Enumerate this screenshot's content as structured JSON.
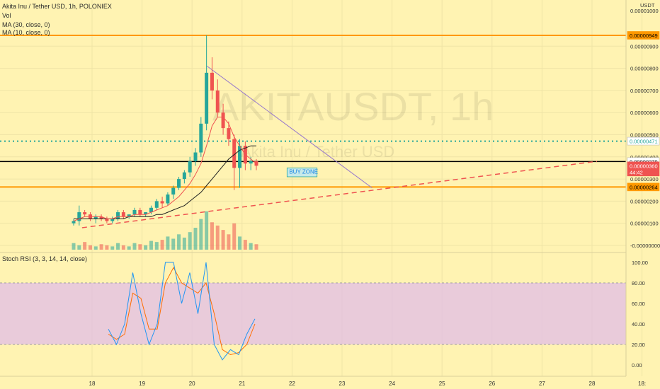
{
  "header": {
    "symbol_line": "Akita Inu / Tether USD, 1h, POLONIEX",
    "vol_label": "Vol",
    "ma30_label": "MA (30, close, 0)",
    "ma10_label": "MA (10, close, 0)"
  },
  "watermark": {
    "big": "AKITAUSDT, 1h",
    "small": "Akita Inu / Tether USD"
  },
  "annotation": {
    "buy_zone": "BUY ZONE"
  },
  "price_axis": {
    "currency": "USDT",
    "top_label": "0.00001000",
    "ticks": [
      "0.00000900",
      "0.00000800",
      "0.00000700",
      "0.00000600",
      "0.00000500",
      "0.00000400",
      "0.00000300",
      "0.00000200",
      "0.00000100",
      "-0.00000000"
    ],
    "tick_values": [
      9e-06,
      8e-06,
      7e-06,
      6e-06,
      5e-06,
      4e-06,
      3e-06,
      2e-06,
      1e-06,
      0
    ],
    "badges": [
      {
        "label": "0.00000949",
        "value": 9.49e-06,
        "color": "#ff9800",
        "text_color": "#000000"
      },
      {
        "label": "0.00000471",
        "value": 4.71e-06,
        "color": "#ffffff",
        "text_color": "#26a69a"
      },
      {
        "label": "0.00000379",
        "value": 3.79e-06,
        "color": "#ffffff",
        "text_color": "#000000"
      },
      {
        "label": "0.00000360",
        "sub": "44:42",
        "value": 3.6e-06,
        "color": "#ef5350",
        "text_color": "#ffffff"
      },
      {
        "label": "0.00000264",
        "value": 2.64e-06,
        "color": "#ff9800",
        "text_color": "#000000"
      }
    ]
  },
  "rsi": {
    "label": "Stoch RSI (3, 3, 14, 14, close)",
    "ticks": [
      "100.00",
      "80.00",
      "60.00",
      "40.00",
      "20.00",
      "0.00"
    ],
    "tick_values": [
      100,
      80,
      60,
      40,
      20,
      0
    ],
    "band_color": "#e1bee7"
  },
  "x_axis": {
    "labels": [
      "18",
      "19",
      "20",
      "21",
      "22",
      "23",
      "24",
      "25",
      "26",
      "27",
      "28",
      "18:"
    ]
  },
  "colors": {
    "up": "#26a69a",
    "down": "#ef5350",
    "ma30": "#212121",
    "ma10": "#ef5350",
    "resistance": "#ff9800",
    "dotted": "#26a69a",
    "trendline": "#ef5350",
    "k_line": "#2196f3",
    "d_line": "#ff6d00"
  },
  "chart_data": {
    "type": "candlestick",
    "symbol": "AKITAUSDT",
    "interval": "1h",
    "exchange": "POLONIEX",
    "ylim": [
      0,
      1e-05
    ],
    "candles_ohlc_sampled": [
      [
        1e-06,
        1.2e-06,
        9e-07,
        1.1e-06
      ],
      [
        1.1e-06,
        1.8e-06,
        9e-07,
        1.5e-06
      ],
      [
        1.5e-06,
        1.6e-06,
        1.3e-06,
        1.4e-06
      ],
      [
        1.4e-06,
        1.5e-06,
        1.1e-06,
        1.2e-06
      ],
      [
        1.2e-06,
        1.4e-06,
        1e-06,
        1.3e-06
      ],
      [
        1.3e-06,
        1.4e-06,
        1.1e-06,
        1.2e-06
      ],
      [
        1.2e-06,
        1.3e-06,
        1e-06,
        1.1e-06
      ],
      [
        1.1e-06,
        1.3e-06,
        1e-06,
        1.2e-06
      ],
      [
        1.2e-06,
        1.6e-06,
        1.1e-06,
        1.5e-06
      ],
      [
        1.5e-06,
        1.6e-06,
        1.2e-06,
        1.3e-06
      ],
      [
        1.3e-06,
        1.4e-06,
        1.2e-06,
        1.4e-06
      ],
      [
        1.4e-06,
        1.7e-06,
        1.3e-06,
        1.6e-06
      ],
      [
        1.6e-06,
        1.7e-06,
        1.3e-06,
        1.4e-06
      ],
      [
        1.4e-06,
        1.5e-06,
        1.3e-06,
        1.5e-06
      ],
      [
        1.5e-06,
        1.8e-06,
        1.4e-06,
        1.7e-06
      ],
      [
        1.7e-06,
        2.1e-06,
        1.6e-06,
        2e-06
      ],
      [
        2e-06,
        2.2e-06,
        1.7e-06,
        1.9e-06
      ],
      [
        1.9e-06,
        2.4e-06,
        1.8e-06,
        2.3e-06
      ],
      [
        2.3e-06,
        2.7e-06,
        2.1e-06,
        2.6e-06
      ],
      [
        2.6e-06,
        3.1e-06,
        2.5e-06,
        3e-06
      ],
      [
        3e-06,
        3.4e-06,
        2.8e-06,
        3.3e-06
      ],
      [
        3.3e-06,
        4e-06,
        3.1e-06,
        3.8e-06
      ],
      [
        3.8e-06,
        4.4e-06,
        3.6e-06,
        4.2e-06
      ],
      [
        4.2e-06,
        5.8e-06,
        4e-06,
        5.5e-06
      ],
      [
        5.5e-06,
        9.49e-06,
        5.2e-06,
        7.8e-06
      ],
      [
        7.8e-06,
        8.5e-06,
        6.6e-06,
        7e-06
      ],
      [
        7e-06,
        7.5e-06,
        5.8e-06,
        6e-06
      ],
      [
        6e-06,
        6.4e-06,
        5e-06,
        5.3e-06
      ],
      [
        5.3e-06,
        5.6e-06,
        4.5e-06,
        4.8e-06
      ],
      [
        4.8e-06,
        5e-06,
        2.5e-06,
        3.5e-06
      ],
      [
        3.5e-06,
        4.8e-06,
        2.6e-06,
        4.5e-06
      ],
      [
        4.5e-06,
        4.7e-06,
        3.4e-06,
        3.7e-06
      ],
      [
        3.7e-06,
        4e-06,
        3.4e-06,
        3.8e-06
      ],
      [
        3.8e-06,
        3.9e-06,
        3.4e-06,
        3.6e-06
      ]
    ],
    "volume_sampled": [
      6,
      4,
      7,
      4,
      3,
      5,
      4,
      3,
      6,
      4,
      3,
      6,
      5,
      4,
      8,
      7,
      9,
      12,
      10,
      14,
      11,
      16,
      20,
      28,
      35,
      25,
      22,
      18,
      14,
      24,
      12,
      9,
      6,
      5
    ],
    "ma10_sampled": [
      1.1e-06,
      1.2e-06,
      1.3e-06,
      1.3e-06,
      1.3e-06,
      1.3e-06,
      1.2e-06,
      1.2e-06,
      1.3e-06,
      1.3e-06,
      1.3e-06,
      1.4e-06,
      1.4e-06,
      1.4e-06,
      1.5e-06,
      1.6e-06,
      1.7e-06,
      1.8e-06,
      2e-06,
      2.2e-06,
      2.5e-06,
      2.8e-06,
      3.2e-06,
      3.7e-06,
      4.5e-06,
      5.4e-06,
      5.8e-06,
      5.8e-06,
      5.5e-06,
      4.9e-06,
      4.5e-06,
      4.1e-06,
      3.9e-06,
      3.7e-06
    ],
    "ma30_sampled": [
      1.2e-06,
      1.2e-06,
      1.2e-06,
      1.2e-06,
      1.2e-06,
      1.2e-06,
      1.2e-06,
      1.2e-06,
      1.2e-06,
      1.2e-06,
      1.3e-06,
      1.3e-06,
      1.3e-06,
      1.3e-06,
      1.3e-06,
      1.4e-06,
      1.4e-06,
      1.5e-06,
      1.6e-06,
      1.7e-06,
      1.8e-06,
      2e-06,
      2.2e-06,
      2.4e-06,
      2.7e-06,
      3e-06,
      3.3e-06,
      3.6e-06,
      3.9e-06,
      4.1e-06,
      4.3e-06,
      4.4e-06,
      4.5e-06,
      4.5e-06
    ],
    "stoch_k_sampled": [
      35,
      20,
      40,
      90,
      50,
      20,
      40,
      100,
      100,
      60,
      90,
      50,
      100,
      20,
      5,
      15,
      10,
      30,
      45
    ],
    "stoch_d_sampled": [
      30,
      25,
      30,
      70,
      65,
      35,
      35,
      80,
      95,
      80,
      75,
      70,
      80,
      50,
      15,
      10,
      12,
      20,
      40
    ],
    "horizontal_levels": [
      9.49e-06,
      4.71e-06,
      3.79e-06,
      2.64e-06
    ],
    "trendlines": [
      {
        "kind": "descending",
        "from": [
          20.3,
          8.1e-06
        ],
        "to": [
          23.6,
          2.6e-06
        ]
      },
      {
        "kind": "ascending",
        "from": [
          17.8,
          8e-07
        ],
        "to": [
          28.1,
          3.8e-06
        ]
      }
    ],
    "buy_zone_box": {
      "x": [
        21.9,
        22.5
      ],
      "y": [
        3.1e-06,
        3.5e-06
      ]
    }
  }
}
